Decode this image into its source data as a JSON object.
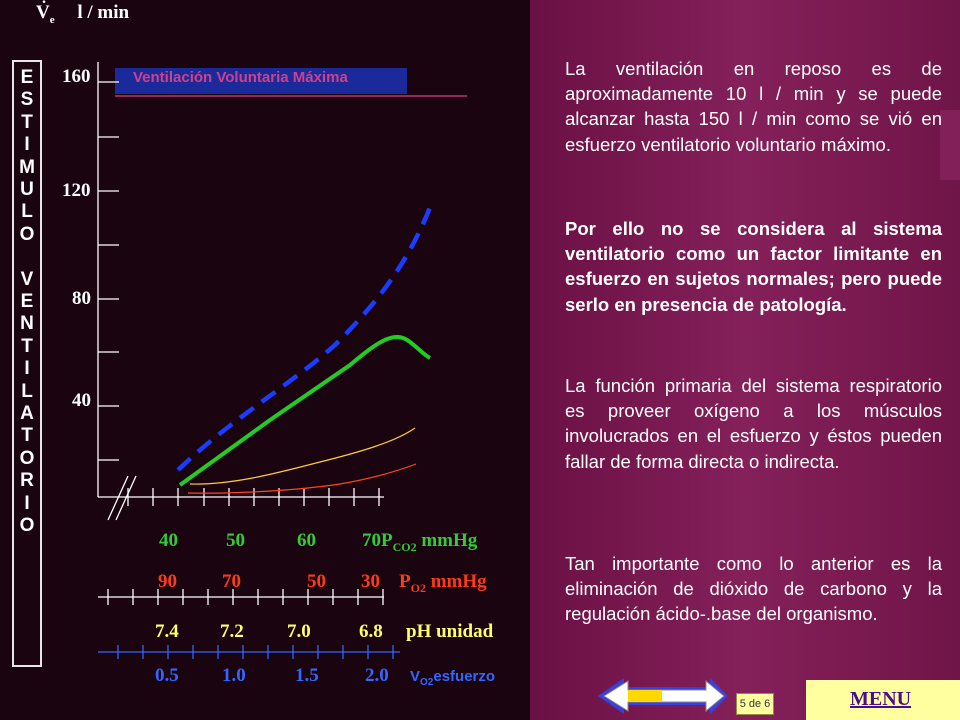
{
  "axis": {
    "title_v": "V",
    "title_sub": "e",
    "title_unit": "l / min",
    "y_ticks": [
      "160",
      "120",
      "80",
      "40"
    ],
    "mvv_label": "Ventilación Voluntaria Máxima"
  },
  "stimulus_letters": [
    "E",
    "S",
    "T",
    "I",
    "M",
    "U",
    "L",
    "O",
    "",
    "V",
    "E",
    "N",
    "T",
    "I",
    "L",
    "A",
    "T",
    "O",
    "R",
    "I",
    "O"
  ],
  "scales": {
    "pco2": {
      "ticks": [
        "40",
        "50",
        "60",
        "70"
      ],
      "label_main": "P",
      "label_sub": "CO2",
      "label_unit": " mmHg",
      "color": "#33cc33"
    },
    "po2": {
      "ticks": [
        "90",
        "70",
        "50",
        "30"
      ],
      "label_main": "P",
      "label_sub": "O2",
      "label_unit": " mmHg",
      "color": "#ff3a1a"
    },
    "ph": {
      "ticks": [
        "7.4",
        "7.2",
        "7.0",
        "6.8"
      ],
      "label": "pH unidad",
      "color": "#ffff66"
    },
    "vo2": {
      "ticks": [
        "0.5",
        "1.0",
        "1.5",
        "2.0"
      ],
      "label_main": "V",
      "label_sub": "O2",
      "label_unit": "esfuerzo",
      "color": "#3366ff"
    }
  },
  "text": {
    "p1": "La ventilación en reposo es de aproximadamente 10 l / min y se puede alcanzar hasta 150 l / min como se vió en esfuerzo ventilatorio voluntario máximo.",
    "p2": "Por ello  no se considera al sistema ventilatorio como un factor limitante en esfuerzo en sujetos normales; pero puede serlo en presencia de patología.",
    "p3": "La función primaria del sistema respiratorio es proveer oxígeno a los músculos involucrados en el esfuerzo y éstos pueden fallar de forma directa o indirecta.",
    "p4": "Tan importante como lo anterior es la eliminación de dióxido de carbono y la regulación ácido-.base del organismo."
  },
  "nav": {
    "page": "5 de 6",
    "menu": "MENU"
  },
  "colors": {
    "left_bg": "#1a0410",
    "right_bg": "#7a1650",
    "green": "#22cc22",
    "blue": "#1a3cff",
    "yellow_bg": "#ffffa0"
  }
}
